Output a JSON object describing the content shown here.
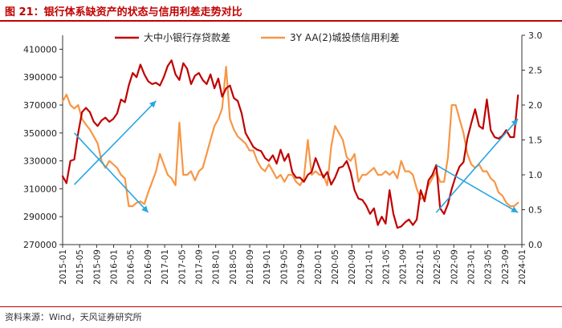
{
  "title": "图 21：银行体系缺资产的状态与信用利差走势对比",
  "source": "资料来源：Wind，天风证券研究所",
  "chart_data": {
    "type": "line",
    "title": "图 21：银行体系缺资产的状态与信用利差走势对比",
    "x_ticks": [
      "2015-01",
      "2015-05",
      "2015-09",
      "2016-01",
      "2016-05",
      "2016-09",
      "2017-01",
      "2017-05",
      "2017-09",
      "2018-01",
      "2018-05",
      "2018-09",
      "2019-01",
      "2019-05",
      "2019-09",
      "2020-01",
      "2020-05",
      "2020-09",
      "2021-01",
      "2021-05",
      "2021-09",
      "2022-01",
      "2022-05",
      "2022-09",
      "2023-01",
      "2023-05",
      "2023-09",
      "2024-01"
    ],
    "x_domain": [
      0,
      118
    ],
    "y_left": {
      "ylim": [
        270000,
        420000
      ],
      "ticks": [
        270000,
        290000,
        310000,
        330000,
        350000,
        370000,
        390000,
        410000
      ]
    },
    "y_right": {
      "ylim": [
        0,
        3.0
      ],
      "ticks": [
        "0.0",
        "0.5",
        "1.0",
        "1.5",
        "2.0",
        "2.5",
        "3.0"
      ]
    },
    "series": [
      {
        "name": "大中小银行存贷款差",
        "axis": "left",
        "color": "#c00000",
        "x": [
          0,
          1,
          2,
          3,
          4,
          5,
          6,
          7,
          8,
          9,
          10,
          11,
          12,
          13,
          14,
          15,
          16,
          17,
          18,
          19,
          20,
          21,
          22,
          23,
          24,
          25,
          26,
          27,
          28,
          29,
          30,
          31,
          32,
          33,
          34,
          35,
          36,
          37,
          38,
          39,
          40,
          41,
          42,
          43,
          44,
          45,
          46,
          47,
          48,
          49,
          50,
          51,
          52,
          53,
          54,
          55,
          56,
          57,
          58,
          59,
          60,
          61,
          62,
          63,
          64,
          65,
          66,
          67,
          68,
          69,
          70,
          71,
          72,
          73,
          74,
          75,
          76,
          77,
          78,
          79,
          80,
          81,
          82,
          83,
          84,
          85,
          86,
          87,
          88,
          89,
          90,
          91,
          92,
          93,
          94,
          95,
          96,
          97,
          98,
          99,
          100,
          101,
          102,
          103,
          104,
          105,
          106,
          107,
          108,
          109,
          110,
          111,
          112,
          113,
          114,
          115,
          116,
          117
        ],
        "values": [
          319000,
          314000,
          330000,
          331000,
          350000,
          365000,
          368000,
          365000,
          358000,
          355000,
          359000,
          361000,
          358000,
          360000,
          364000,
          374000,
          372000,
          384000,
          393000,
          390000,
          399000,
          392000,
          387000,
          385000,
          386000,
          384000,
          390000,
          398000,
          402000,
          392000,
          388000,
          400000,
          396000,
          385000,
          391000,
          393000,
          388000,
          385000,
          392000,
          382000,
          389000,
          376000,
          382000,
          384000,
          375000,
          373000,
          364000,
          350000,
          345000,
          340000,
          338000,
          337000,
          332000,
          330000,
          334000,
          328000,
          338000,
          330000,
          335000,
          322000,
          318000,
          318000,
          315000,
          320000,
          322000,
          332000,
          325000,
          318000,
          322000,
          313000,
          318000,
          325000,
          326000,
          330000,
          322000,
          309000,
          303000,
          302000,
          298000,
          292000,
          296000,
          284000,
          290000,
          285000,
          309000,
          292000,
          282000,
          283000,
          286000,
          288000,
          284000,
          288000,
          309000,
          301000,
          316000,
          320000,
          327000,
          296000,
          292000,
          299000,
          310000,
          319000,
          326000,
          329000,
          346000,
          357000,
          367000,
          355000,
          353000,
          374000,
          352000,
          347000,
          346000,
          348000,
          352000,
          347000,
          347000,
          377000
        ]
      },
      {
        "name": "3Y AA(2)城投债信用利差",
        "axis": "right",
        "color": "#f79646",
        "x": [
          0,
          1,
          2,
          3,
          4,
          5,
          6,
          7,
          8,
          9,
          10,
          11,
          12,
          13,
          14,
          15,
          16,
          17,
          18,
          19,
          20,
          21,
          22,
          23,
          24,
          25,
          26,
          27,
          28,
          29,
          30,
          31,
          32,
          33,
          34,
          35,
          36,
          37,
          38,
          39,
          40,
          41,
          42,
          43,
          44,
          45,
          46,
          47,
          48,
          49,
          50,
          51,
          52,
          53,
          54,
          55,
          56,
          57,
          58,
          59,
          60,
          61,
          62,
          63,
          64,
          65,
          66,
          67,
          68,
          69,
          70,
          71,
          72,
          73,
          74,
          75,
          76,
          77,
          78,
          79,
          80,
          81,
          82,
          83,
          84,
          85,
          86,
          87,
          88,
          89,
          90,
          91,
          92,
          93,
          94,
          95,
          96,
          97,
          98,
          99,
          100,
          101,
          102,
          103,
          104,
          105,
          106,
          107,
          108,
          109,
          110,
          111,
          112,
          113,
          114,
          115,
          116,
          117
        ],
        "values": [
          2.05,
          2.15,
          2.0,
          1.95,
          2.0,
          1.8,
          1.72,
          1.65,
          1.55,
          1.45,
          1.2,
          1.1,
          1.2,
          1.15,
          1.1,
          1.0,
          0.95,
          0.55,
          0.55,
          0.6,
          0.62,
          0.58,
          0.75,
          0.9,
          1.05,
          1.3,
          1.15,
          1.0,
          0.95,
          0.85,
          1.75,
          1.0,
          1.0,
          1.05,
          0.92,
          1.05,
          1.1,
          1.3,
          1.5,
          1.7,
          1.8,
          1.95,
          2.55,
          1.8,
          1.65,
          1.55,
          1.5,
          1.45,
          1.35,
          1.35,
          1.2,
          1.1,
          1.05,
          1.15,
          1.05,
          0.95,
          1.0,
          0.9,
          1.0,
          1.0,
          0.9,
          0.85,
          0.95,
          1.5,
          1.0,
          1.05,
          1.0,
          1.0,
          0.85,
          1.4,
          1.7,
          1.6,
          1.5,
          1.25,
          1.2,
          1.3,
          0.9,
          1.0,
          1.0,
          1.05,
          1.1,
          1.0,
          1.0,
          1.05,
          1.0,
          1.05,
          0.95,
          1.2,
          1.05,
          1.05,
          1.0,
          0.8,
          0.65,
          0.7,
          0.85,
          0.95,
          1.05,
          0.9,
          0.9,
          1.25,
          2.0,
          2.0,
          1.8,
          1.6,
          1.3,
          1.15,
          1.1,
          1.15,
          1.05,
          1.05,
          0.95,
          0.9,
          0.75,
          0.7,
          0.6,
          0.55,
          0.55,
          0.6
        ]
      }
    ],
    "arrows": [
      {
        "from": [
          3,
          313000
        ],
        "to": [
          24,
          373000
        ]
      },
      {
        "from": [
          3,
          350000
        ],
        "to": [
          22,
          293000
        ]
      },
      {
        "from": [
          96,
          293000
        ],
        "to": [
          117,
          360000
        ]
      },
      {
        "from": [
          96,
          327000
        ],
        "to": [
          117,
          293000
        ]
      }
    ],
    "legend": "top-center",
    "grid": false
  }
}
